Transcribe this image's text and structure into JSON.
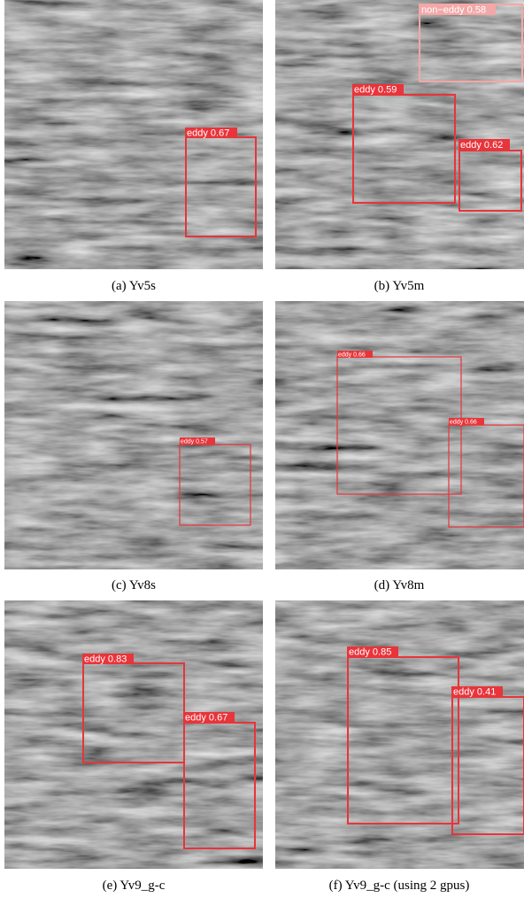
{
  "panels": [
    {
      "caption": "(a) Yv5s",
      "detections": [
        {
          "label": "eddy 0.67"
        }
      ]
    },
    {
      "caption": "(b) Yv5m",
      "detections": [
        {
          "label": "non−eddy 0.58"
        },
        {
          "label": "eddy 0.59"
        },
        {
          "label": "eddy 0.62"
        }
      ]
    },
    {
      "caption": "(c) Yv8s",
      "detections": [
        {
          "label": "eddy 0.57"
        }
      ]
    },
    {
      "caption": "(d) Yv8m",
      "detections": [
        {
          "label": "eddy 0.66"
        },
        {
          "label": "eddy 0.66"
        }
      ]
    },
    {
      "caption": "(e) Yv9_g-c",
      "detections": [
        {
          "label": "eddy 0.83"
        },
        {
          "label": "eddy 0.67"
        }
      ]
    },
    {
      "caption": "(f) Yv9_g-c (using 2 gpus)",
      "detections": [
        {
          "label": "eddy 0.85"
        },
        {
          "label": "eddy 0.41"
        }
      ]
    }
  ]
}
